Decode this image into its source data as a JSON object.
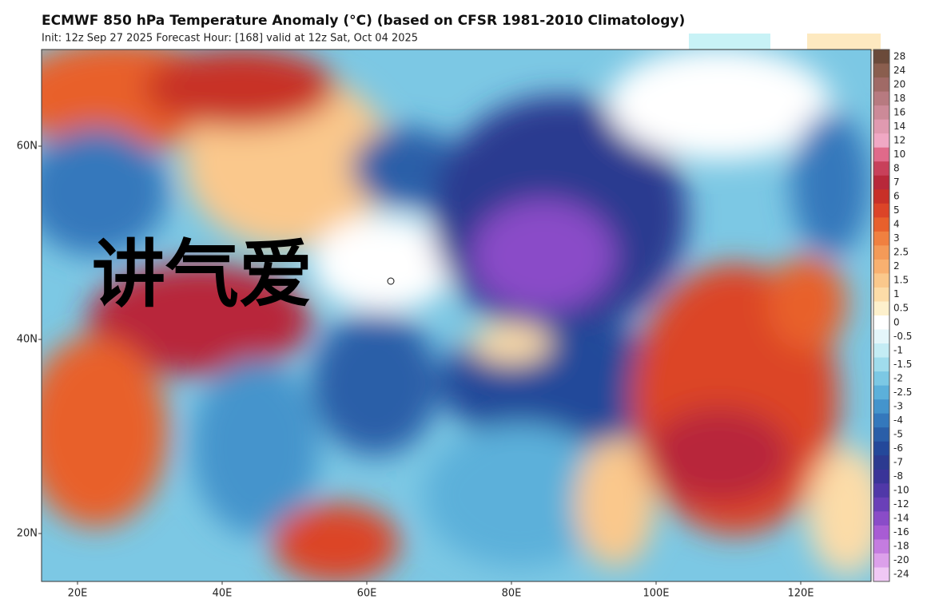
{
  "header": {
    "title": "ECMWF 850 hPa Temperature Anomaly (°C) (based on CFSR 1981-2010 Climatology)",
    "subtitle": "Init: 12z Sep 27 2025   Forecast Hour: [168]   valid at 12z Sat, Oct 04 2025"
  },
  "map": {
    "lat_labels": [
      "60N",
      "40N",
      "20N"
    ],
    "lon_labels": [
      "20E",
      "40E",
      "60E",
      "80E",
      "100E",
      "120E"
    ],
    "watermark": "讲气爱"
  },
  "colorbar": [
    {
      "label": "28",
      "color": "#6b4a3a"
    },
    {
      "label": "24",
      "color": "#8a5e4e"
    },
    {
      "label": "20",
      "color": "#a06a66"
    },
    {
      "label": "18",
      "color": "#b77a80"
    },
    {
      "label": "16",
      "color": "#cc8a98"
    },
    {
      "label": "14",
      "color": "#e09ab0"
    },
    {
      "label": "12",
      "color": "#f0a8c4"
    },
    {
      "label": "10",
      "color": "#e06a8a"
    },
    {
      "label": "8",
      "color": "#c8405a"
    },
    {
      "label": "7",
      "color": "#b8283a"
    },
    {
      "label": "6",
      "color": "#c83028"
    },
    {
      "label": "5",
      "color": "#dc4428"
    },
    {
      "label": "4",
      "color": "#e8602c"
    },
    {
      "label": "3",
      "color": "#f08040"
    },
    {
      "label": "2.5",
      "color": "#f49a58"
    },
    {
      "label": "2",
      "color": "#f8b070"
    },
    {
      "label": "1.5",
      "color": "#fac88c"
    },
    {
      "label": "1",
      "color": "#fcdca8"
    },
    {
      "label": "0.5",
      "color": "#fdf0cc"
    },
    {
      "label": "0",
      "color": "#ffffff"
    },
    {
      "label": "-0.5",
      "color": "#e4f6fa"
    },
    {
      "label": "-1",
      "color": "#c4ecf4"
    },
    {
      "label": "-1.5",
      "color": "#a0dcec"
    },
    {
      "label": "-2",
      "color": "#7cc8e4"
    },
    {
      "label": "-2.5",
      "color": "#5cb0da"
    },
    {
      "label": "-3",
      "color": "#4494cc"
    },
    {
      "label": "-4",
      "color": "#3478bc"
    },
    {
      "label": "-5",
      "color": "#2a5ea8"
    },
    {
      "label": "-6",
      "color": "#24489a"
    },
    {
      "label": "-7",
      "color": "#2c3a90"
    },
    {
      "label": "-8",
      "color": "#3a3498"
    },
    {
      "label": "-10",
      "color": "#5038a8"
    },
    {
      "label": "-12",
      "color": "#6a40b8"
    },
    {
      "label": "-14",
      "color": "#8a4cc8"
    },
    {
      "label": "-16",
      "color": "#a85cd4"
    },
    {
      "label": "-18",
      "color": "#c47ce0"
    },
    {
      "label": "-20",
      "color": "#dca0ea"
    },
    {
      "label": "-24",
      "color": "#f0c8f4"
    }
  ]
}
